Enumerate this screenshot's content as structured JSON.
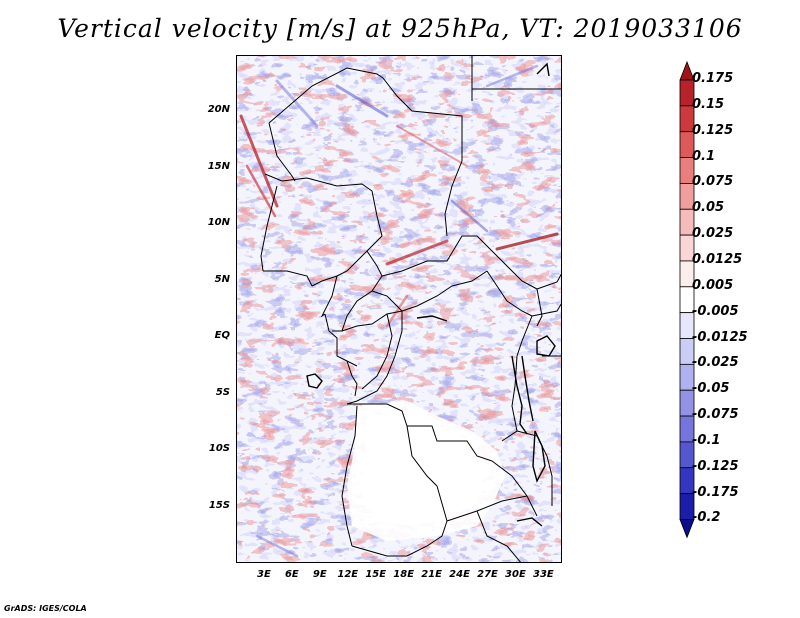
{
  "title": "Vertical velocity [m/s] at 925hPa, VT: 2019033106",
  "footer": "GrADS: IGES/COLA",
  "map": {
    "lon_range": [
      0,
      35
    ],
    "lat_range": [
      -20,
      25
    ],
    "y_ticks": [
      {
        "lat": 20,
        "label": "20N"
      },
      {
        "lat": 15,
        "label": "15N"
      },
      {
        "lat": 10,
        "label": "10N"
      },
      {
        "lat": 5,
        "label": "5N"
      },
      {
        "lat": 0,
        "label": "EQ"
      },
      {
        "lat": -5,
        "label": "5S"
      },
      {
        "lat": -10,
        "label": "10S"
      },
      {
        "lat": -15,
        "label": "15S"
      }
    ],
    "x_ticks": [
      {
        "lon": 3,
        "label": "3E"
      },
      {
        "lon": 6,
        "label": "6E"
      },
      {
        "lon": 9,
        "label": "9E"
      },
      {
        "lon": 12,
        "label": "12E"
      },
      {
        "lon": 15,
        "label": "15E"
      },
      {
        "lon": 18,
        "label": "18E"
      },
      {
        "lon": 21,
        "label": "21E"
      },
      {
        "lon": 24,
        "label": "24E"
      },
      {
        "lon": 27,
        "label": "27E"
      },
      {
        "lon": 30,
        "label": "30E"
      },
      {
        "lon": 33,
        "label": "33E"
      }
    ]
  },
  "colorbar": {
    "levels": [
      "0.175",
      "0.15",
      "0.125",
      "0.1",
      "0.075",
      "0.05",
      "0.025",
      "0.0125",
      "0.005",
      "-0.005",
      "-0.0125",
      "-0.025",
      "-0.05",
      "-0.075",
      "-0.1",
      "-0.125",
      "-0.175",
      "-0.2"
    ],
    "colors": [
      "#a01418",
      "#b8222a",
      "#cc3a3e",
      "#de5a5a",
      "#e87e7e",
      "#f09e9e",
      "#f6bcbc",
      "#fad6d6",
      "#fdeeee",
      "#ffffff",
      "#e6e6fc",
      "#cccdf7",
      "#b0b2f0",
      "#9293e6",
      "#7476dc",
      "#5557cf",
      "#3436c0",
      "#1c1da8",
      "#0c0d8c"
    ]
  },
  "colors": {
    "ocean_land_background": "#ffffff",
    "positive": "#f0a0a0",
    "negative": "#a8aaf0",
    "border": "#000000"
  }
}
